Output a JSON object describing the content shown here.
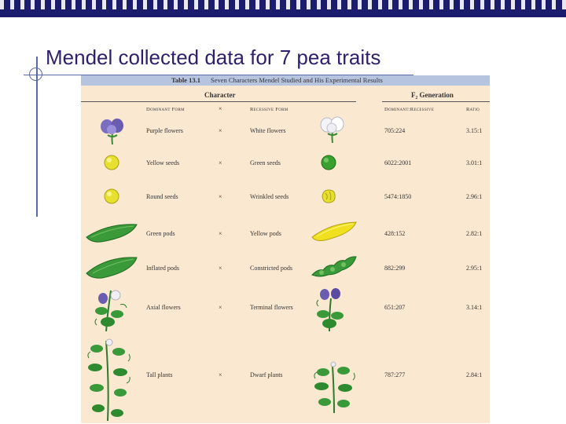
{
  "slide": {
    "title": "Mendel collected data for 7 pea traits"
  },
  "table": {
    "number": "Table 13.1",
    "caption": "Seven Characters Mendel Studied and His Experimental Results",
    "group_headers": {
      "character": "Character",
      "f2": "F₂ Generation"
    },
    "columns": {
      "dominant": "Dominant Form",
      "cross": "×",
      "recessive": "Recessive Form",
      "dom_rec": "Dominant:Recessive",
      "ratio": "Ratio"
    },
    "rows": [
      {
        "dominant": "Purple flowers",
        "cross": "×",
        "recessive": "White flowers",
        "counts": "705:224",
        "ratio": "3.15:1",
        "dom_icon": "purple-flower-icon",
        "rec_icon": "white-flower-icon"
      },
      {
        "dominant": "Yellow seeds",
        "cross": "×",
        "recessive": "Green seeds",
        "counts": "6022:2001",
        "ratio": "3.01:1",
        "dom_icon": "yellow-seed-icon",
        "rec_icon": "green-seed-icon"
      },
      {
        "dominant": "Round seeds",
        "cross": "×",
        "recessive": "Wrinkled seeds",
        "counts": "5474:1850",
        "ratio": "2.96:1",
        "dom_icon": "round-seed-icon",
        "rec_icon": "wrinkled-seed-icon"
      },
      {
        "dominant": "Green pods",
        "cross": "×",
        "recessive": "Yellow pods",
        "counts": "428:152",
        "ratio": "2.82:1",
        "dom_icon": "green-pod-icon",
        "rec_icon": "yellow-pod-icon"
      },
      {
        "dominant": "Inflated pods",
        "cross": "×",
        "recessive": "Constricted pods",
        "counts": "882:299",
        "ratio": "2.95:1",
        "dom_icon": "inflated-pod-icon",
        "rec_icon": "constricted-pod-icon"
      },
      {
        "dominant": "Axial flowers",
        "cross": "×",
        "recessive": "Terminal flowers",
        "counts": "651:207",
        "ratio": "3.14:1",
        "dom_icon": "axial-flower-icon",
        "rec_icon": "terminal-flower-icon"
      },
      {
        "dominant": "Tall plants",
        "cross": "×",
        "recessive": "Dwarf plants",
        "counts": "787:277",
        "ratio": "2.84:1",
        "dom_icon": "tall-plant-icon",
        "rec_icon": "dwarf-plant-icon"
      }
    ]
  },
  "colors": {
    "top_bar": "#1c1c6e",
    "title": "#30206a",
    "table_bg": "#fbe8d0",
    "caption_bg": "#b6c4e0"
  }
}
